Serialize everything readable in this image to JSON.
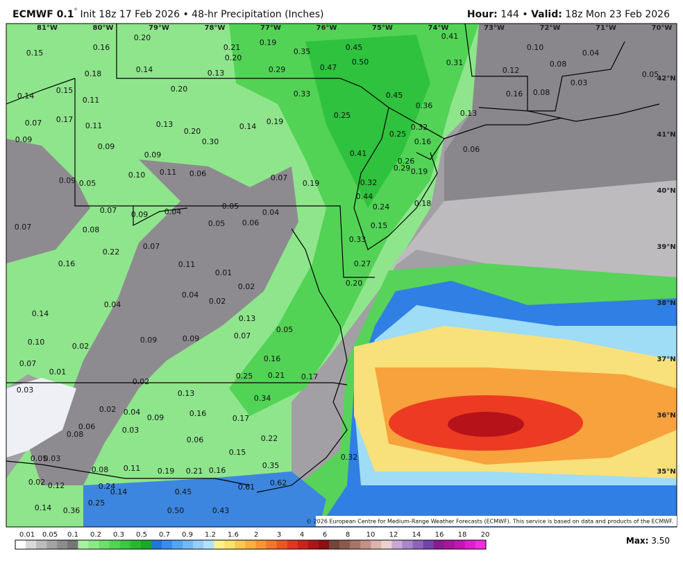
{
  "header": {
    "model": "ECMWF 0.1",
    "degree": "°",
    "init": "Init 18z 17 Feb 2026 • 48-hr Precipitation (Inches)",
    "hour_label": "Hour:",
    "hour": "144",
    "sep": "•",
    "valid_label": "Valid:",
    "valid": "18z Mon 23 Feb 2026"
  },
  "longitudes": [
    "81°W",
    "80°W",
    "79°W",
    "78°W",
    "77°W",
    "76°W",
    "75°W",
    "74°W",
    "73°W",
    "72°W",
    "71°W",
    "70°W"
  ],
  "latitudes": [
    "42°N",
    "41°N",
    "40°N",
    "39°N",
    "38°N",
    "37°N",
    "36°N",
    "35°N"
  ],
  "map_labels": [
    "0.20",
    "0.16",
    "0.15",
    "0.21",
    "0.20",
    "0.19",
    "0.35",
    "0.45",
    "0.47",
    "0.50",
    "0.41",
    "0.31",
    "0.10",
    "0.08",
    "0.04",
    "0.12",
    "0.18",
    "0.14",
    "0.13",
    "0.29",
    "0.15",
    "0.14",
    "0.11",
    "0.20",
    "0.33",
    "0.45",
    "0.36",
    "0.16",
    "0.08",
    "0.03",
    "0.05",
    "0.17",
    "0.07",
    "0.11",
    "0.13",
    "0.14",
    "0.19",
    "0.25",
    "0.13",
    "0.32",
    "0.25",
    "0.16",
    "0.20",
    "0.30",
    "0.09",
    "0.09",
    "0.09",
    "0.41",
    "0.26",
    "0.29",
    "0.19",
    "0.06",
    "0.10",
    "0.11",
    "0.06",
    "0.07",
    "0.19",
    "0.32",
    "0.09",
    "0.05",
    "0.44",
    "0.24",
    "0.18",
    "0.07",
    "0.09",
    "0.04",
    "0.05",
    "0.04",
    "0.05",
    "0.06",
    "0.15",
    "0.33",
    "0.07",
    "0.08",
    "0.22",
    "0.07",
    "0.27",
    "0.16",
    "0.11",
    "0.01",
    "0.02",
    "0.20",
    "0.04",
    "0.04",
    "0.02",
    "0.14",
    "0.13",
    "0.07",
    "0.05",
    "0.10",
    "0.02",
    "0.09",
    "0.09",
    "0.16",
    "0.07",
    "0.01",
    "0.25",
    "0.21",
    "0.17",
    "0.03",
    "0.02",
    "0.13",
    "0.34",
    "0.02",
    "0.04",
    "0.09",
    "0.16",
    "0.17",
    "0.06",
    "0.03",
    "0.08",
    "0.06",
    "0.22",
    "0.15",
    "0.05",
    "0.03",
    "0.08",
    "0.11",
    "0.19",
    "0.21",
    "0.16",
    "0.35",
    "0.02",
    "0.12",
    "0.24",
    "0.14",
    "0.45",
    "0.61",
    "0.62",
    "0.25",
    "0.14",
    "0.36",
    "0.50",
    "0.43",
    "0.32"
  ],
  "colorbar": {
    "labels": [
      "0.01",
      "0.05",
      "0.1",
      "0.2",
      "0.3",
      "0.5",
      "0.7",
      "0.9",
      "1.2",
      "1.6",
      "2",
      "3",
      "4",
      "6",
      "8",
      "10",
      "12",
      "14",
      "16",
      "18",
      "20"
    ]
  },
  "max": {
    "label": "Max:",
    "value": "3.50"
  },
  "copyright": "© 2026 European Centre for Medium-Range Weather Forecasts (ECMWF). This service is based on data and products of the ECMWF."
}
